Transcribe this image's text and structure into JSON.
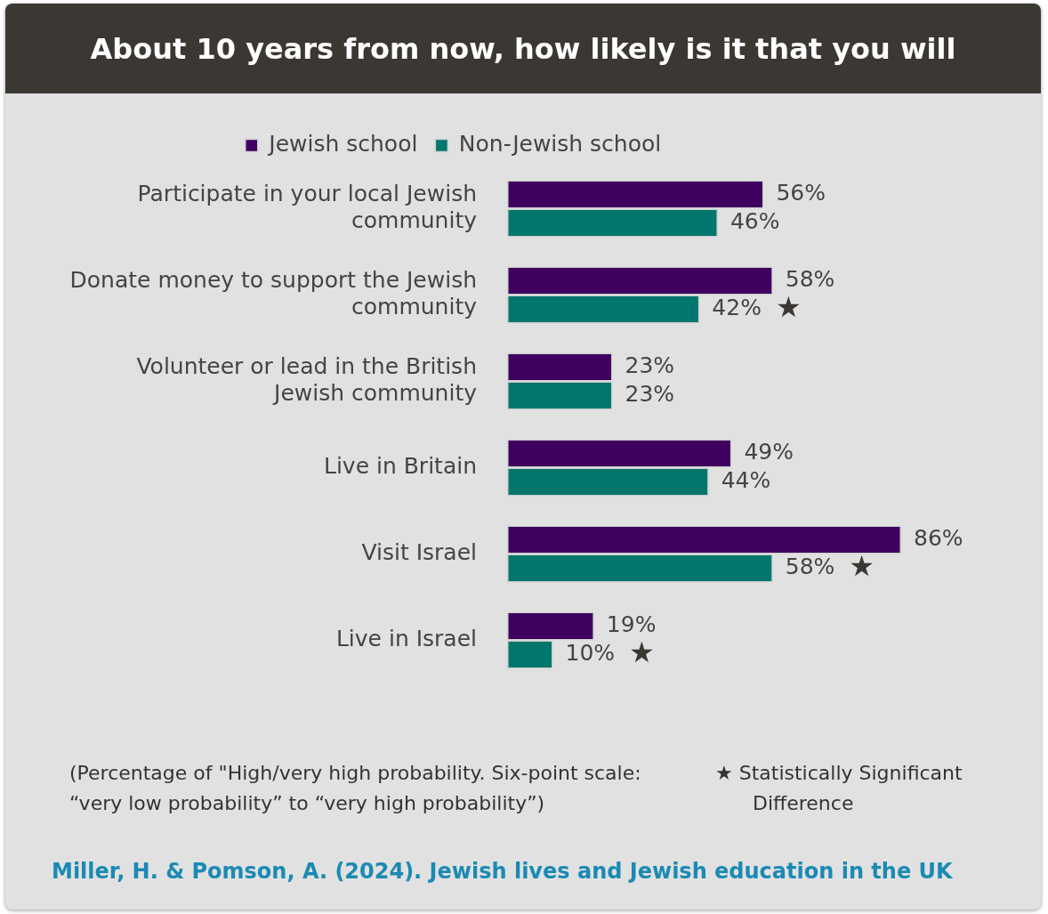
{
  "chart_data": {
    "type": "bar",
    "orientation": "horizontal",
    "title": "About 10 years from now, how likely is it that you will",
    "categories": [
      "Participate in your local Jewish community",
      "Donate money to support the Jewish community",
      "Volunteer or lead in the British Jewish community",
      "Live in Britain",
      "Visit Israel",
      "Live in Israel"
    ],
    "series": [
      {
        "name": "Jewish school",
        "color": "#3f0060",
        "values": [
          56,
          58,
          23,
          49,
          86,
          19
        ],
        "value_labels": [
          "56%",
          "58%",
          "23%",
          "49%",
          "86%",
          "19%"
        ]
      },
      {
        "name": "Non-Jewish school",
        "color": "#00766d",
        "values": [
          46,
          42,
          23,
          44,
          58,
          10
        ],
        "value_labels": [
          "46%",
          "42%",
          "23%",
          "44%",
          "58%",
          "10%"
        ]
      }
    ],
    "tick_labels": "y",
    "legend": "top",
    "annotations": [
      {
        "text": "★",
        "x": 42,
        "y": "Donate money to support the Jewish community"
      },
      {
        "text": "★",
        "x": 58,
        "y": "Visit Israel"
      },
      {
        "text": "★",
        "x": 10,
        "y": "Live in Israel"
      },
      "(Percentage of \"High/very high probability. Six-point scale: “very low probability” to “very high probability”)",
      "★ Statistically Significant Difference",
      "Miller, H. & Pomson, A. (2024). Jewish lives and Jewish education in the UK"
    ]
  }
}
